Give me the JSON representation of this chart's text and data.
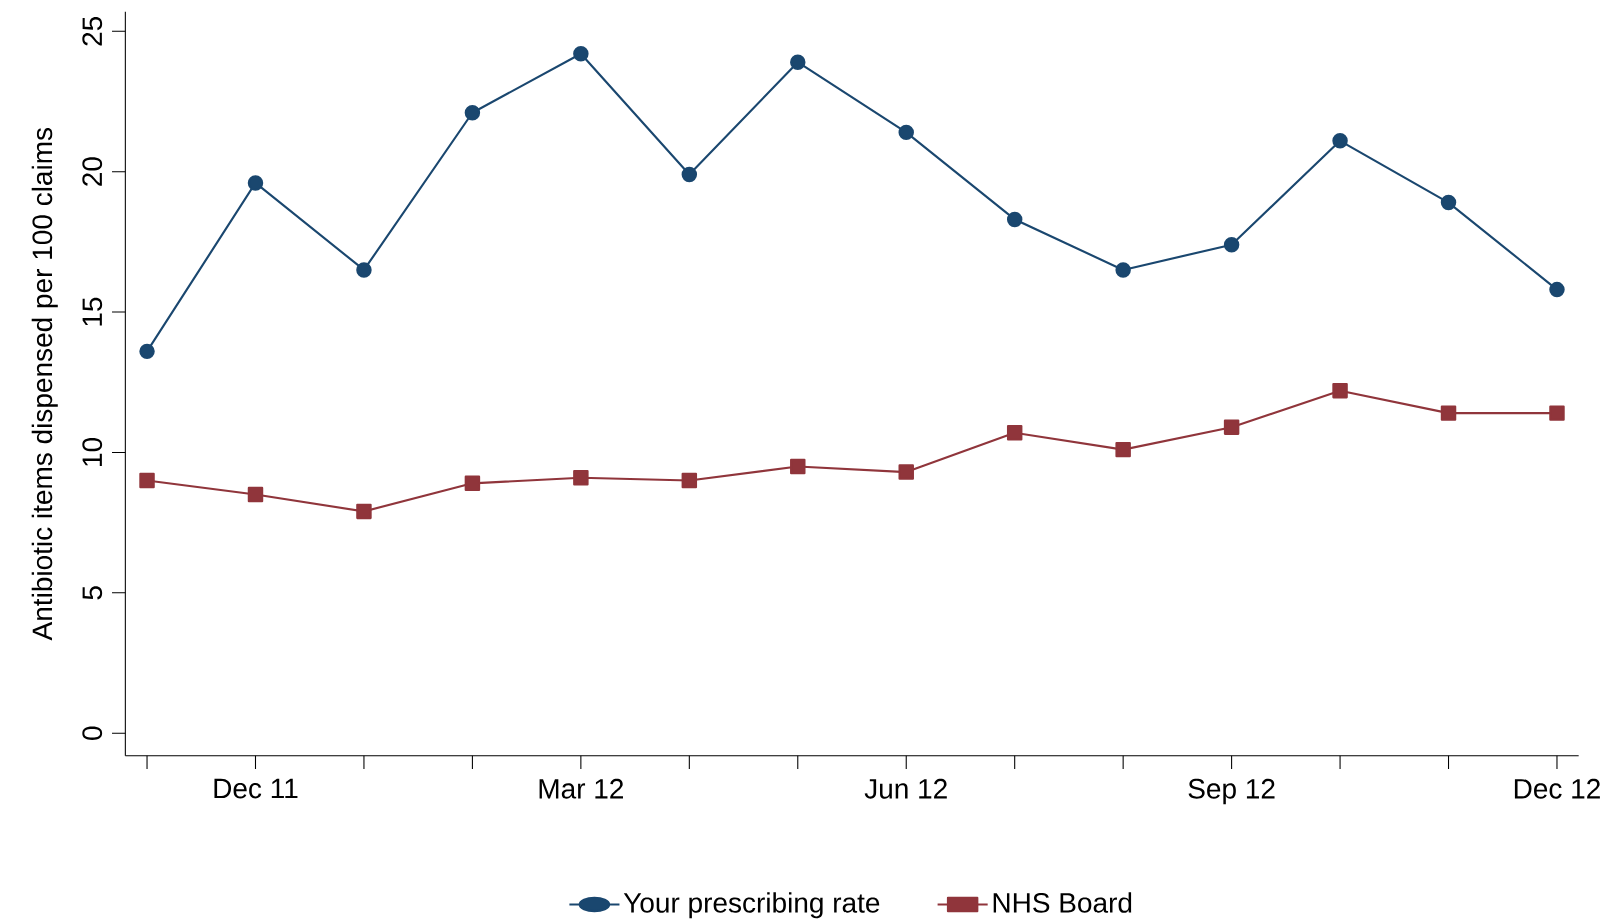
{
  "chart_data": {
    "type": "line",
    "ylabel": "Antibiotic items dispensed per 100 claims",
    "categories": [
      null,
      "Dec 11",
      null,
      null,
      "Mar 12",
      null,
      null,
      "Jun 12",
      null,
      null,
      "Sep 12",
      null,
      null,
      "Dec 12"
    ],
    "series": [
      {
        "name": "Your prescribing rate",
        "color": "#1a476f",
        "marker": "circle",
        "values": [
          13.6,
          19.6,
          16.5,
          22.1,
          24.2,
          19.9,
          23.9,
          21.4,
          18.3,
          16.5,
          17.4,
          21.1,
          18.9,
          15.8
        ]
      },
      {
        "name": "NHS Board",
        "color": "#90353b",
        "marker": "square",
        "values": [
          9.0,
          8.5,
          7.9,
          8.9,
          9.1,
          9.0,
          9.5,
          9.3,
          10.7,
          10.1,
          10.9,
          12.2,
          11.4,
          11.4
        ]
      }
    ],
    "ylim": [
      -0.8,
      25.7
    ],
    "yticks": [
      0,
      5,
      10,
      15,
      20,
      25
    ],
    "grid": false,
    "legend": "bottom"
  }
}
